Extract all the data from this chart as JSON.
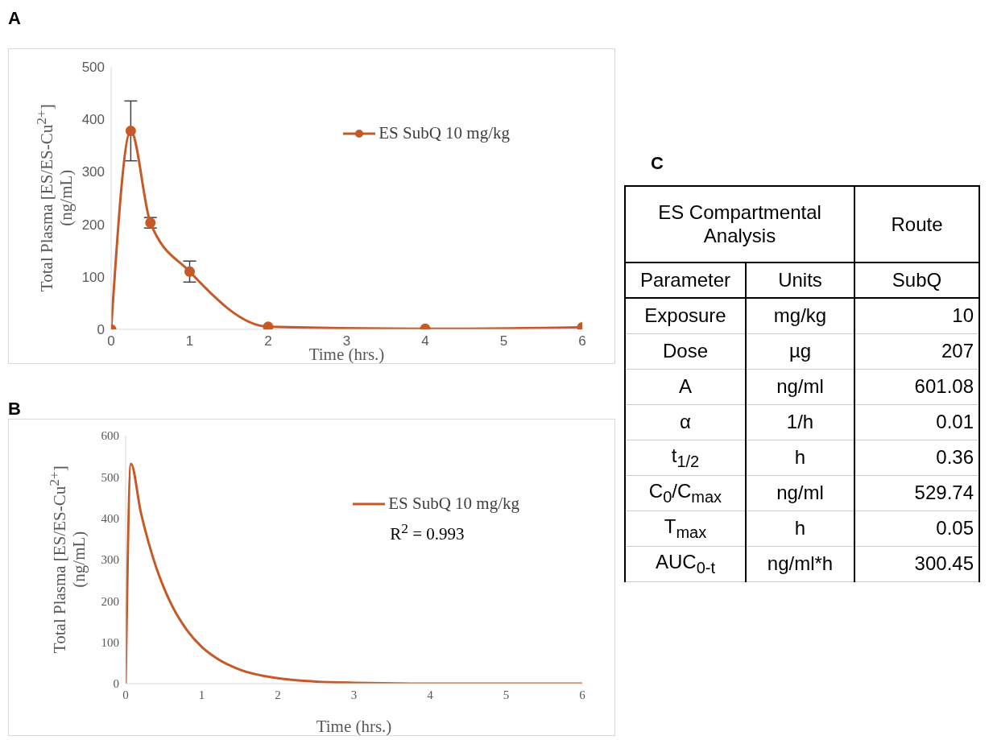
{
  "chart_data": [
    {
      "type": "line",
      "title": "A",
      "xlabel": "Time (hrs.)",
      "ylabel": "Total Plasma [ES/ES-Cu$^{2+}$] (ng/mL)",
      "x": [
        0,
        0.25,
        0.5,
        1,
        2,
        4,
        6
      ],
      "series": [
        {
          "name": "ES SubQ 10 mg/kg",
          "color": "#c55a28",
          "values": [
            0,
            378,
            203,
            110,
            5,
            1,
            4
          ],
          "errors": [
            null,
            57,
            10,
            20,
            null,
            null,
            null
          ]
        }
      ],
      "xlim": [
        0,
        6
      ],
      "xticks": [
        0,
        1,
        2,
        3,
        4,
        5,
        6
      ],
      "ylim": [
        0,
        500
      ],
      "yticks": [
        0,
        100,
        200,
        300,
        400,
        500
      ],
      "grid": false,
      "legend": "top right",
      "marker": "circle"
    },
    {
      "type": "line",
      "title": "B",
      "xlabel": "Time (hrs.)",
      "ylabel": "Total Plasma [ES/ES-Cu$^{2+}$] (ng/mL)",
      "x": [
        0,
        0.07,
        0.2,
        0.3,
        0.4,
        0.5,
        0.6,
        0.8,
        1,
        1.2,
        1.5,
        2,
        2.5,
        3,
        4,
        5,
        6
      ],
      "series": [
        {
          "name": "ES SubQ 10 mg/kg",
          "color": "#c55a28",
          "values": [
            0,
            532,
            414,
            342,
            282,
            233,
            192,
            131,
            89,
            61,
            34,
            13,
            5,
            2,
            0,
            0,
            0
          ]
        }
      ],
      "xlim": [
        0,
        6
      ],
      "xticks": [
        0,
        1,
        2,
        3,
        4,
        5,
        6
      ],
      "ylim": [
        0,
        600
      ],
      "yticks": [
        0,
        100,
        200,
        300,
        400,
        500,
        600
      ],
      "grid": false,
      "legend": "top right",
      "marker": "none",
      "annotations": [
        "R$^{2}$ = 0.993"
      ]
    },
    {
      "type": "other",
      "title": "C",
      "annotations": [
        "ES Compartmental Analysis",
        "Route"
      ],
      "categories": [
        "Parameter",
        "Units",
        "SubQ"
      ],
      "y_categories": [
        "Exposure",
        "Dose",
        "A",
        "α",
        "t$_{1/2}$",
        "C$_{0}$/C$_{max}$",
        "T$_{max}$",
        "AUC$_{0-t}$"
      ],
      "cell_labels": [
        [
          "mg/kg",
          "10"
        ],
        [
          "µg",
          "207"
        ],
        [
          "ng/ml",
          "601.08"
        ],
        [
          "1/h",
          "0.01"
        ],
        [
          "h",
          "0.36"
        ],
        [
          "ng/ml",
          "529.74"
        ],
        [
          "h",
          "0.05"
        ],
        [
          "ng/ml*h",
          "300.45"
        ]
      ]
    }
  ]
}
